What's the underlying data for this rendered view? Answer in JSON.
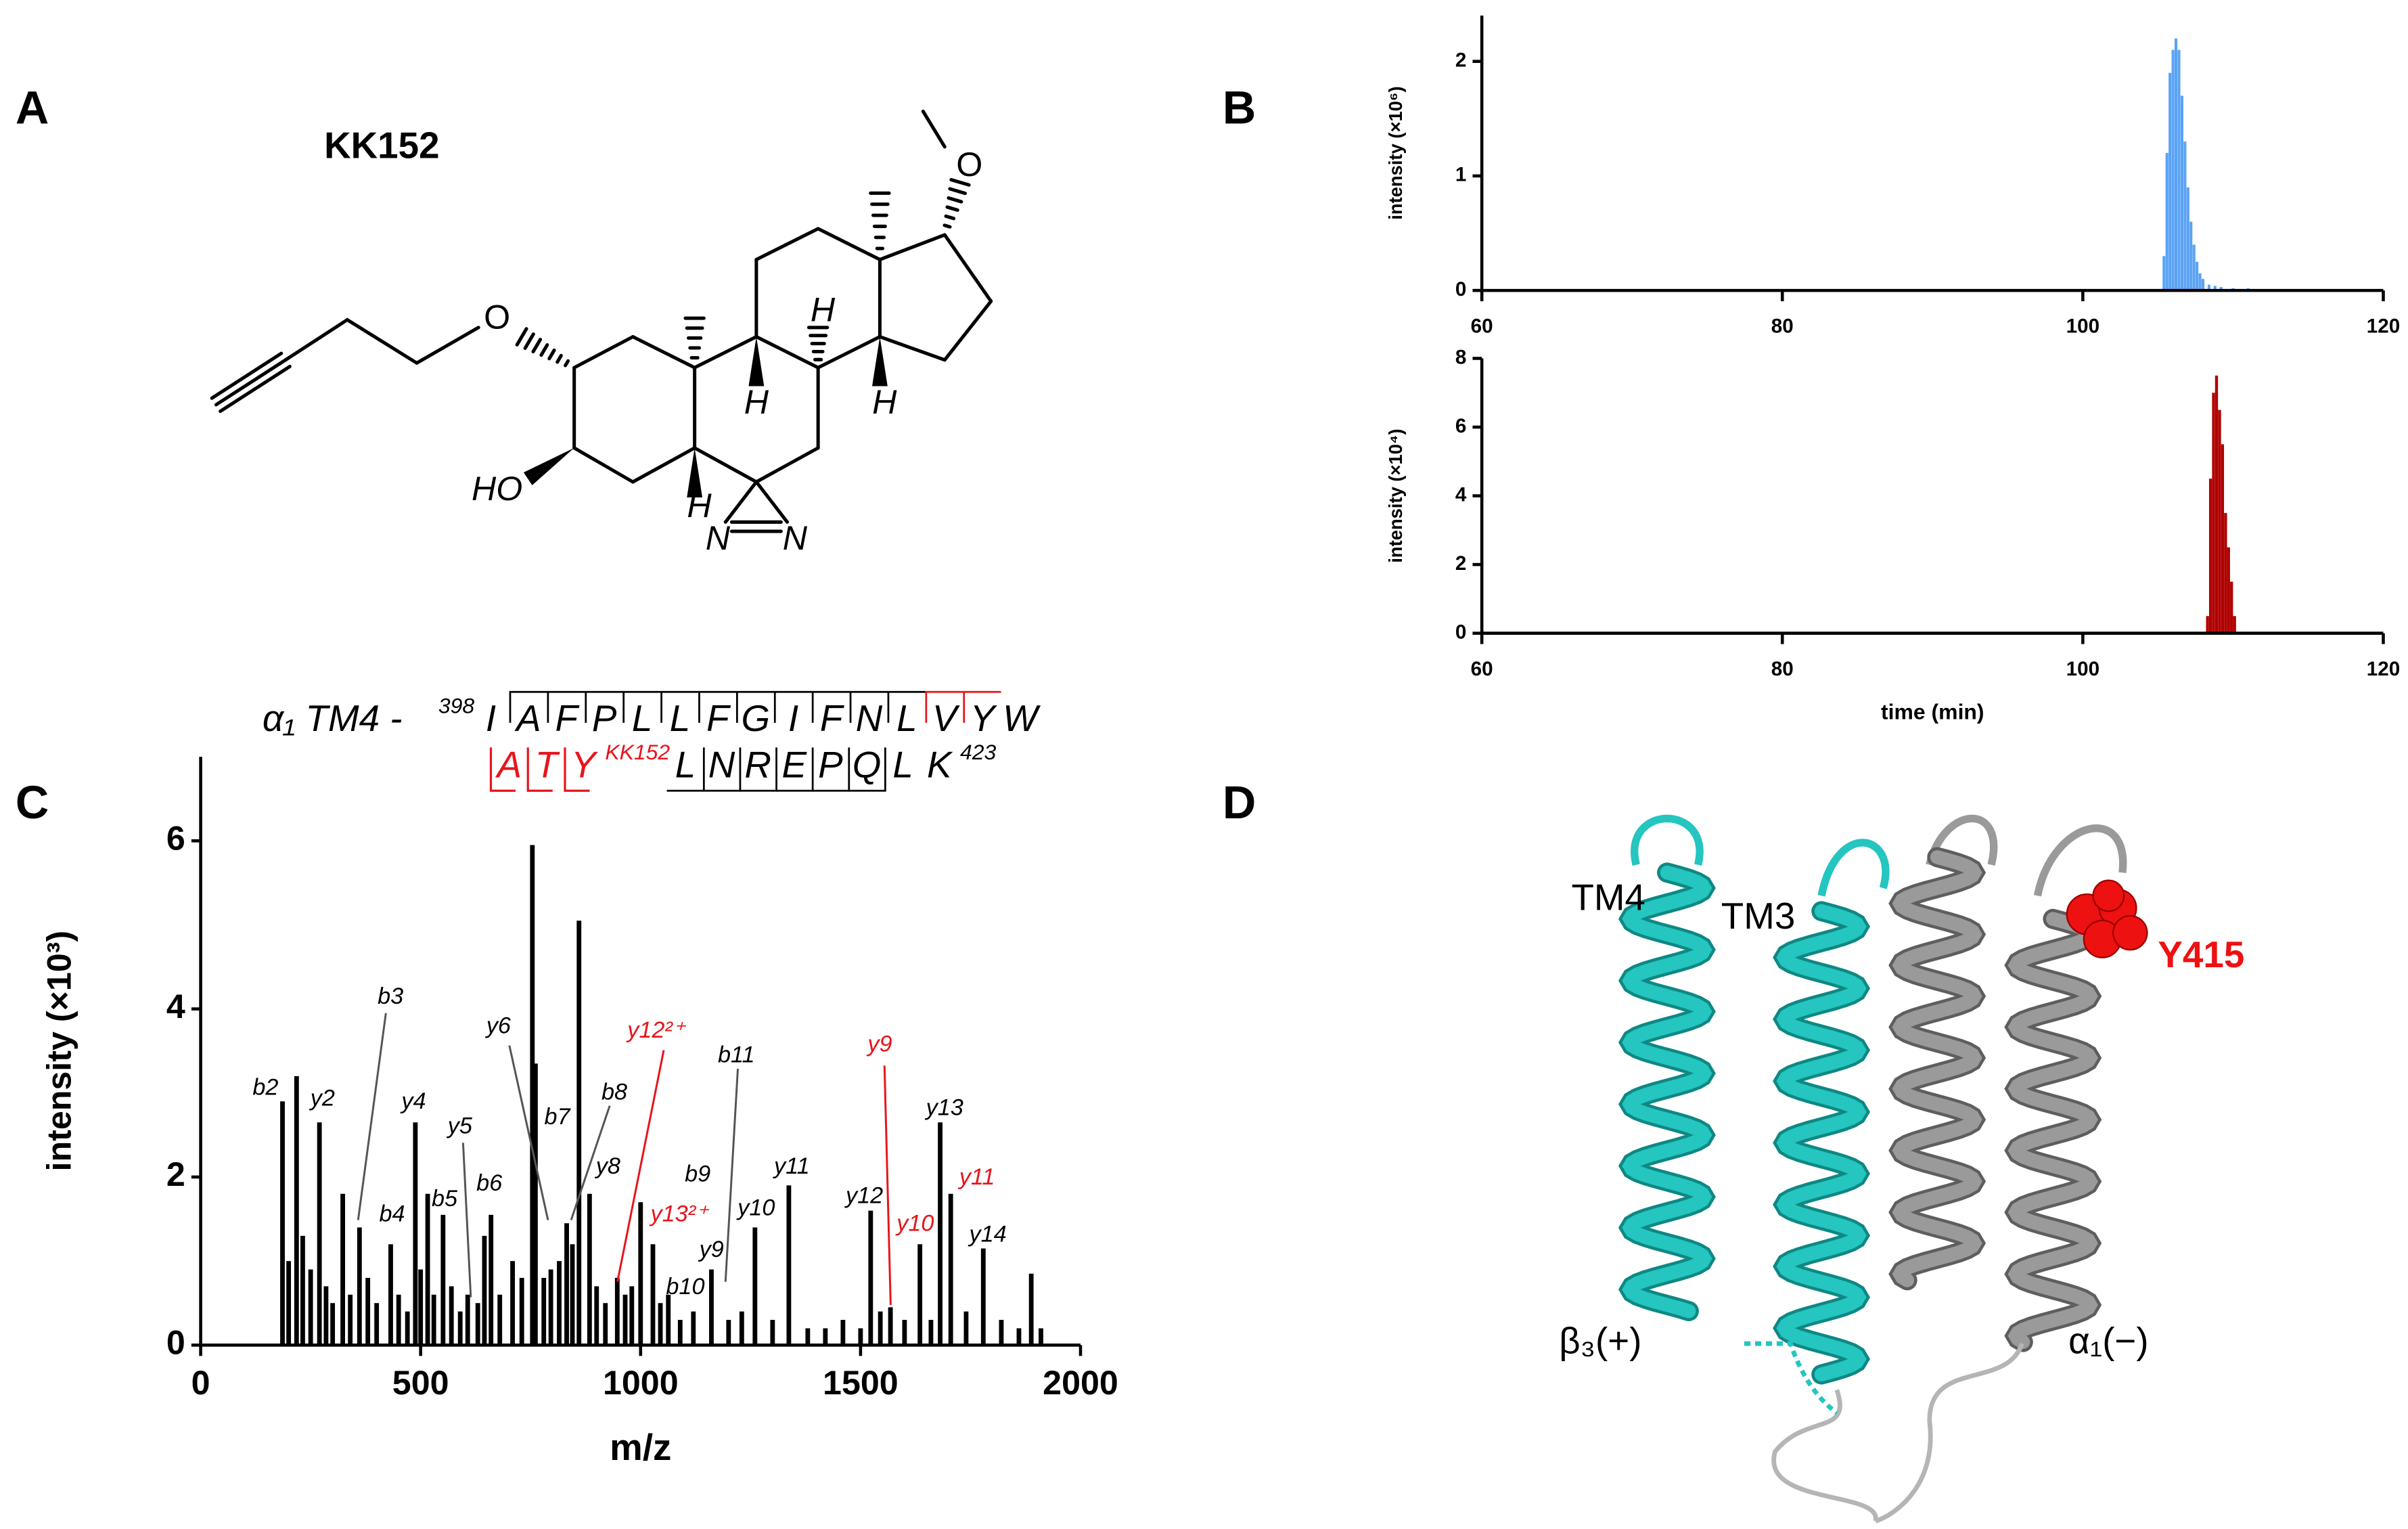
{
  "panels": [
    "A",
    "B",
    "C",
    "D"
  ],
  "structure": {
    "name": "KK152",
    "atoms": [
      "O",
      "O",
      "HO",
      "H",
      "H",
      "H",
      "H",
      "N",
      "N"
    ]
  },
  "peptide": {
    "prefix": "α₁ TM4 -",
    "start": "398",
    "line1": [
      "I",
      "A",
      "F",
      "P",
      "L",
      "L",
      "F",
      "G",
      "I",
      "F",
      "N",
      "L",
      "V",
      "Y",
      "W"
    ],
    "red_part": [
      "A",
      "T",
      "Y"
    ],
    "mod": "KK152",
    "black_part": [
      "L",
      "N",
      "R",
      "E",
      "P",
      "Q",
      "L",
      "K"
    ],
    "end": "423",
    "red": "#e8141c"
  },
  "protein": {
    "labels": [
      "TM4",
      "TM3",
      "Y415",
      "β₃(+)",
      "α₁(−)"
    ],
    "residue_color": "#ee1111"
  },
  "chart_data": [
    {
      "type": "bar",
      "ylabel": "intensity (×10⁶)",
      "color": "#5aa2f5",
      "x": [
        105.4,
        105.6,
        105.8,
        106.0,
        106.2,
        106.4,
        106.6,
        106.8,
        107.0,
        107.2,
        107.4,
        107.6,
        107.8,
        108.0,
        108.4,
        108.8,
        109.2,
        110,
        111,
        112,
        113,
        114,
        115
      ],
      "values": [
        0.3,
        1.2,
        1.9,
        2.1,
        2.2,
        2.1,
        1.7,
        1.3,
        0.9,
        0.6,
        0.4,
        0.25,
        0.15,
        0.1,
        0.05,
        0.04,
        0.03,
        0.02,
        0.02,
        0.01,
        0.01,
        0.01,
        0.01
      ],
      "xlim": [
        60,
        120
      ],
      "xticks": [
        60,
        80,
        100,
        120
      ],
      "ylim": [
        0,
        2.4
      ],
      "yticks": [
        0,
        1,
        2
      ]
    },
    {
      "type": "bar",
      "ylabel": "intensity (×10⁴)",
      "xlabel": "time (min)",
      "color": "#b00000",
      "x": [
        108.3,
        108.5,
        108.7,
        108.9,
        109.1,
        109.3,
        109.5,
        109.7,
        109.9,
        110.1
      ],
      "values": [
        0.5,
        4.5,
        7.0,
        7.5,
        6.5,
        5.5,
        3.5,
        2.5,
        1.5,
        0.5
      ],
      "xlim": [
        60,
        120
      ],
      "xticks": [
        60,
        80,
        100,
        120
      ],
      "ylim": [
        0,
        8
      ],
      "yticks": [
        0,
        2,
        4,
        6,
        8
      ]
    },
    {
      "type": "bar",
      "ylabel": "intensity (×10³)",
      "xlabel": "m/z",
      "color": "#000000",
      "x": [
        186,
        200,
        218,
        232,
        250,
        270,
        285,
        300,
        323,
        340,
        361,
        380,
        400,
        432,
        450,
        470,
        488,
        500,
        516,
        530,
        551,
        570,
        590,
        607,
        630,
        645,
        660,
        680,
        709,
        730,
        754,
        761,
        780,
        796,
        815,
        832,
        845,
        860,
        884,
        900,
        920,
        947,
        965,
        980,
        1000,
        1028,
        1045,
        1063,
        1090,
        1120,
        1161,
        1200,
        1230,
        1260,
        1300,
        1337,
        1380,
        1420,
        1460,
        1500,
        1523,
        1545,
        1568,
        1600,
        1635,
        1660,
        1681,
        1705,
        1740,
        1779,
        1820,
        1860,
        1888,
        1910
      ],
      "values": [
        2.9,
        1.0,
        3.2,
        1.3,
        0.9,
        2.65,
        0.7,
        0.5,
        1.8,
        0.6,
        1.4,
        0.8,
        0.5,
        1.2,
        0.6,
        0.4,
        2.65,
        0.9,
        1.8,
        0.6,
        1.55,
        0.7,
        0.4,
        0.6,
        0.5,
        1.3,
        1.55,
        0.6,
        1.0,
        0.8,
        5.95,
        3.35,
        0.8,
        0.9,
        1.0,
        1.45,
        1.2,
        5.05,
        1.8,
        0.7,
        0.5,
        0.8,
        0.6,
        0.7,
        1.7,
        1.2,
        0.5,
        0.6,
        0.3,
        0.4,
        0.9,
        0.3,
        0.4,
        1.4,
        0.3,
        1.9,
        0.2,
        0.2,
        0.3,
        0.2,
        1.6,
        0.4,
        0.45,
        0.3,
        1.2,
        0.3,
        2.65,
        1.8,
        0.4,
        1.15,
        0.3,
        0.2,
        0.85,
        0.2
      ],
      "xlim": [
        0,
        2000
      ],
      "xticks": [
        0,
        500,
        1000,
        1500,
        2000
      ],
      "ylim": [
        0,
        7
      ],
      "yticks": [
        0,
        2,
        4,
        6
      ],
      "annotations": [
        {
          "text": "b2",
          "color": "#000000"
        },
        {
          "text": "y2",
          "color": "#000000"
        },
        {
          "text": "b3",
          "color": "#000000"
        },
        {
          "text": "y4",
          "color": "#000000"
        },
        {
          "text": "b4",
          "color": "#000000"
        },
        {
          "text": "y5",
          "color": "#000000"
        },
        {
          "text": "b5",
          "color": "#000000"
        },
        {
          "text": "b6",
          "color": "#000000"
        },
        {
          "text": "y6",
          "color": "#000000"
        },
        {
          "text": "b7",
          "color": "#000000"
        },
        {
          "text": "b8",
          "color": "#000000"
        },
        {
          "text": "y8",
          "color": "#000000"
        },
        {
          "text": "y12²⁺",
          "color": "#e8141c"
        },
        {
          "text": "b9",
          "color": "#000000"
        },
        {
          "text": "y13²⁺",
          "color": "#e8141c"
        },
        {
          "text": "b11",
          "color": "#000000"
        },
        {
          "text": "b10",
          "color": "#000000"
        },
        {
          "text": "y9",
          "color": "#000000"
        },
        {
          "text": "y10",
          "color": "#000000"
        },
        {
          "text": "y11",
          "color": "#000000"
        },
        {
          "text": "y9",
          "color": "#e8141c"
        },
        {
          "text": "y12",
          "color": "#000000"
        },
        {
          "text": "y10",
          "color": "#e8141c"
        },
        {
          "text": "y13",
          "color": "#000000"
        },
        {
          "text": "y11",
          "color": "#e8141c"
        },
        {
          "text": "y14",
          "color": "#000000"
        }
      ]
    }
  ]
}
